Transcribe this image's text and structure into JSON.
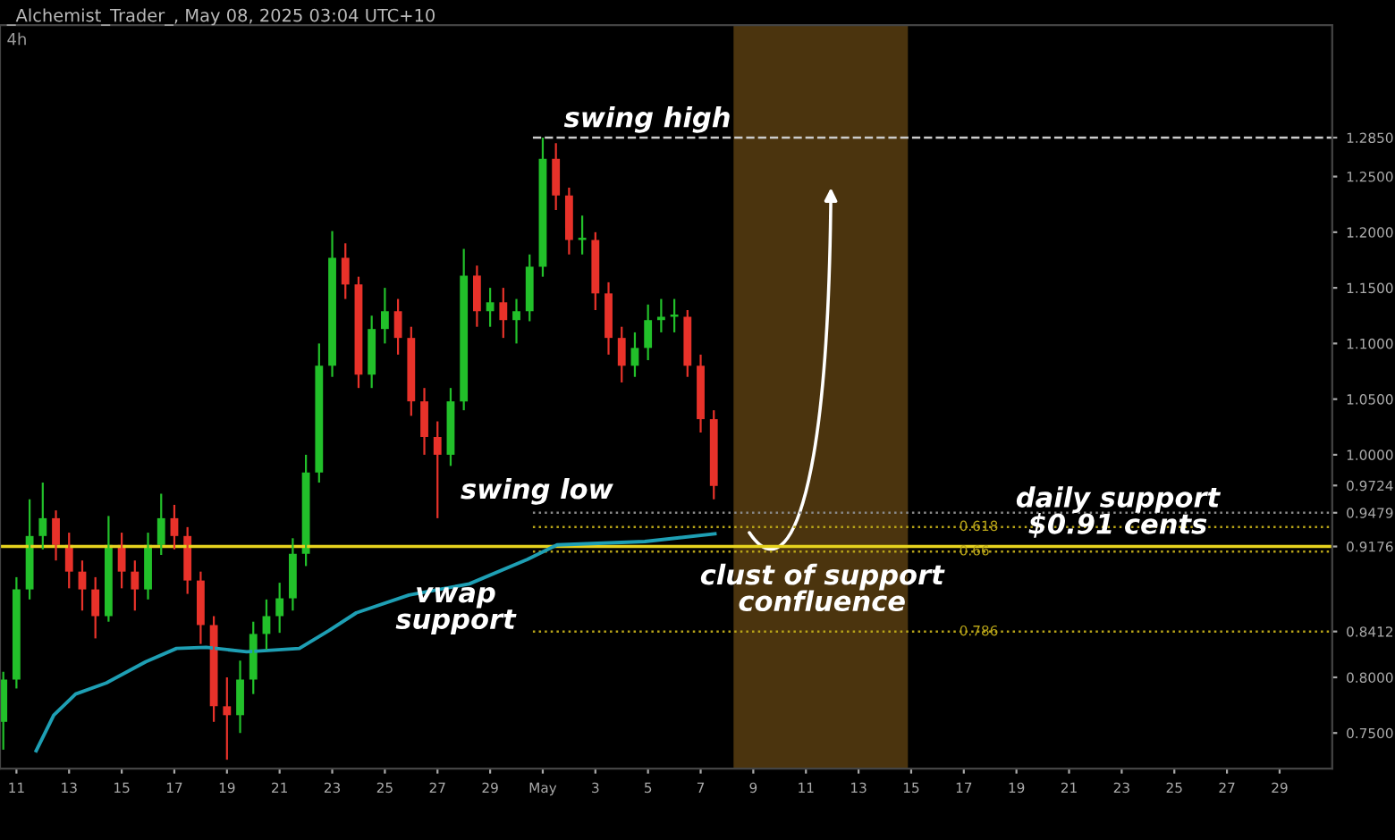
{
  "chart_data": {
    "type": "candlestick",
    "title": "_Alchemist_Trader_, May 08, 2025 03:04 UTC+10",
    "subtitle": "4h",
    "x": [
      "2025-04-10T12:00",
      "2025-04-11T00:00",
      "2025-04-11T12:00",
      "2025-04-12T00:00",
      "2025-04-12T12:00",
      "2025-04-13T00:00",
      "2025-04-13T12:00",
      "2025-04-14T00:00",
      "2025-04-14T12:00",
      "2025-04-15T00:00",
      "2025-04-15T12:00",
      "2025-04-16T00:00",
      "2025-04-16T12:00",
      "2025-04-17T00:00",
      "2025-04-17T12:00",
      "2025-04-18T00:00",
      "2025-04-18T12:00",
      "2025-04-19T00:00",
      "2025-04-19T12:00",
      "2025-04-20T00:00",
      "2025-04-20T12:00",
      "2025-04-21T00:00",
      "2025-04-21T12:00",
      "2025-04-22T00:00",
      "2025-04-22T12:00",
      "2025-04-23T00:00",
      "2025-04-23T12:00",
      "2025-04-24T00:00",
      "2025-04-24T12:00",
      "2025-04-25T00:00",
      "2025-04-25T12:00",
      "2025-04-26T00:00",
      "2025-04-26T12:00",
      "2025-04-27T00:00",
      "2025-04-27T12:00",
      "2025-04-28T00:00",
      "2025-04-28T12:00",
      "2025-04-29T00:00",
      "2025-04-29T12:00",
      "2025-04-30T00:00",
      "2025-04-30T12:00",
      "2025-05-01T00:00",
      "2025-05-01T12:00",
      "2025-05-02T00:00",
      "2025-05-02T12:00",
      "2025-05-03T00:00",
      "2025-05-03T12:00",
      "2025-05-04T00:00",
      "2025-05-04T12:00",
      "2025-05-05T00:00",
      "2025-05-05T12:00",
      "2025-05-06T00:00",
      "2025-05-06T12:00",
      "2025-05-07T00:00",
      "2025-05-07T12:00"
    ],
    "ohlc": [
      [
        0.76,
        0.805,
        0.735,
        0.798
      ],
      [
        0.798,
        0.89,
        0.79,
        0.879
      ],
      [
        0.879,
        0.96,
        0.87,
        0.927
      ],
      [
        0.927,
        0.975,
        0.915,
        0.943
      ],
      [
        0.943,
        0.95,
        0.905,
        0.919
      ],
      [
        0.919,
        0.93,
        0.88,
        0.895
      ],
      [
        0.895,
        0.905,
        0.86,
        0.879
      ],
      [
        0.879,
        0.89,
        0.835,
        0.855
      ],
      [
        0.855,
        0.945,
        0.85,
        0.919
      ],
      [
        0.919,
        0.93,
        0.88,
        0.895
      ],
      [
        0.895,
        0.905,
        0.86,
        0.879
      ],
      [
        0.879,
        0.93,
        0.87,
        0.919
      ],
      [
        0.919,
        0.965,
        0.91,
        0.943
      ],
      [
        0.943,
        0.955,
        0.915,
        0.927
      ],
      [
        0.927,
        0.935,
        0.875,
        0.887
      ],
      [
        0.887,
        0.895,
        0.83,
        0.847
      ],
      [
        0.847,
        0.855,
        0.76,
        0.774
      ],
      [
        0.774,
        0.8,
        0.726,
        0.766
      ],
      [
        0.766,
        0.815,
        0.75,
        0.798
      ],
      [
        0.798,
        0.85,
        0.785,
        0.839
      ],
      [
        0.839,
        0.87,
        0.825,
        0.855
      ],
      [
        0.855,
        0.885,
        0.84,
        0.871
      ],
      [
        0.871,
        0.925,
        0.86,
        0.911
      ],
      [
        0.911,
        1.0,
        0.9,
        0.984
      ],
      [
        0.984,
        1.1,
        0.975,
        1.08
      ],
      [
        1.08,
        1.201,
        1.07,
        1.177
      ],
      [
        1.177,
        1.19,
        1.14,
        1.153
      ],
      [
        1.153,
        1.16,
        1.06,
        1.072
      ],
      [
        1.072,
        1.125,
        1.06,
        1.113
      ],
      [
        1.113,
        1.15,
        1.1,
        1.129
      ],
      [
        1.129,
        1.14,
        1.09,
        1.105
      ],
      [
        1.105,
        1.115,
        1.035,
        1.048
      ],
      [
        1.048,
        1.06,
        1.0,
        1.016
      ],
      [
        1.016,
        1.03,
        0.943,
        1.0
      ],
      [
        1.0,
        1.06,
        0.99,
        1.048
      ],
      [
        1.048,
        1.185,
        1.04,
        1.161
      ],
      [
        1.161,
        1.17,
        1.115,
        1.129
      ],
      [
        1.129,
        1.15,
        1.115,
        1.137
      ],
      [
        1.137,
        1.15,
        1.105,
        1.121
      ],
      [
        1.121,
        1.14,
        1.1,
        1.129
      ],
      [
        1.129,
        1.18,
        1.12,
        1.169
      ],
      [
        1.169,
        1.285,
        1.16,
        1.266
      ],
      [
        1.266,
        1.28,
        1.22,
        1.233
      ],
      [
        1.233,
        1.24,
        1.18,
        1.193
      ],
      [
        1.193,
        1.215,
        1.18,
        1.193
      ],
      [
        1.193,
        1.2,
        1.13,
        1.145
      ],
      [
        1.145,
        1.155,
        1.09,
        1.105
      ],
      [
        1.105,
        1.115,
        1.065,
        1.08
      ],
      [
        1.08,
        1.11,
        1.07,
        1.096
      ],
      [
        1.096,
        1.135,
        1.085,
        1.121
      ],
      [
        1.121,
        1.14,
        1.11,
        1.124
      ],
      [
        1.124,
        1.14,
        1.11,
        1.124
      ],
      [
        1.124,
        1.13,
        1.07,
        1.08
      ],
      [
        1.08,
        1.09,
        1.02,
        1.032
      ],
      [
        1.032,
        1.04,
        0.96,
        0.972
      ]
    ],
    "colors": [
      "#22c02a",
      "#22c02a",
      "#22c02a",
      "#22c02a",
      "#e8322a",
      "#e8322a",
      "#e8322a",
      "#e8322a",
      "#22c02a",
      "#e8322a",
      "#e8322a",
      "#22c02a",
      "#22c02a",
      "#e8322a",
      "#e8322a",
      "#e8322a",
      "#e8322a",
      "#e8322a",
      "#22c02a",
      "#22c02a",
      "#22c02a",
      "#22c02a",
      "#22c02a",
      "#22c02a",
      "#22c02a",
      "#22c02a",
      "#e8322a",
      "#e8322a",
      "#22c02a",
      "#22c02a",
      "#e8322a",
      "#e8322a",
      "#e8322a",
      "#e8322a",
      "#22c02a",
      "#22c02a",
      "#e8322a",
      "#22c02a",
      "#e8322a",
      "#22c02a",
      "#22c02a",
      "#22c02a",
      "#e8322a",
      "#e8322a",
      "#22c02a",
      "#e8322a",
      "#e8322a",
      "#e8322a",
      "#22c02a",
      "#22c02a",
      "#22c02a",
      "#22c02a",
      "#e8322a",
      "#e8322a",
      "#e8322a"
    ],
    "series": [
      {
        "type": "line",
        "color": "#1e9fb4",
        "x": [
          "2025-04-11T18:00",
          "2025-04-12T10:00",
          "2025-04-13T06:00",
          "2025-04-14T10:00",
          "2025-04-15T22:00",
          "2025-04-17T02:00",
          "2025-04-18T05:00",
          "2025-04-19T18:00",
          "2025-04-21T18:00",
          "2025-04-22T21:00",
          "2025-04-23T22:00",
          "2025-04-25T22:00",
          "2025-04-28T05:00",
          "2025-04-30T10:00",
          "2025-05-01T13:00",
          "2025-05-04T21:00",
          "2025-05-07T13:00"
        ],
        "values": [
          0.734,
          0.766,
          0.785,
          0.795,
          0.814,
          0.826,
          0.827,
          0.823,
          0.826,
          0.842,
          0.858,
          0.874,
          0.884,
          0.906,
          0.919,
          0.922,
          0.929
        ]
      }
    ],
    "xlim": [
      "2025-04-10T09:00",
      "2025-05-31T00:00"
    ],
    "xticks": [
      {
        "value": "2025-04-11",
        "label": "11"
      },
      {
        "value": "2025-04-13",
        "label": "13"
      },
      {
        "value": "2025-04-15",
        "label": "15"
      },
      {
        "value": "2025-04-17",
        "label": "17"
      },
      {
        "value": "2025-04-19",
        "label": "19"
      },
      {
        "value": "2025-04-21",
        "label": "21"
      },
      {
        "value": "2025-04-23",
        "label": "23"
      },
      {
        "value": "2025-04-25",
        "label": "25"
      },
      {
        "value": "2025-04-27",
        "label": "27"
      },
      {
        "value": "2025-04-29",
        "label": "29"
      },
      {
        "value": "2025-05-01",
        "label": "May"
      },
      {
        "value": "2025-05-03",
        "label": "3"
      },
      {
        "value": "2025-05-05",
        "label": "5"
      },
      {
        "value": "2025-05-07",
        "label": "7"
      },
      {
        "value": "2025-05-09",
        "label": "9"
      },
      {
        "value": "2025-05-11",
        "label": "11"
      },
      {
        "value": "2025-05-13",
        "label": "13"
      },
      {
        "value": "2025-05-15",
        "label": "15"
      },
      {
        "value": "2025-05-17",
        "label": "17"
      },
      {
        "value": "2025-05-19",
        "label": "19"
      },
      {
        "value": "2025-05-21",
        "label": "21"
      },
      {
        "value": "2025-05-23",
        "label": "23"
      },
      {
        "value": "2025-05-25",
        "label": "25"
      },
      {
        "value": "2025-05-27",
        "label": "27"
      },
      {
        "value": "2025-05-29",
        "label": "29"
      }
    ],
    "ylim": [
      0.718,
      1.386
    ],
    "yticks": [
      {
        "value": 0.75,
        "label": "0.7500"
      },
      {
        "value": 0.8,
        "label": "0.8000"
      },
      {
        "value": 0.8412,
        "label": "0.8412"
      },
      {
        "value": 0.9176,
        "label": "0.9176"
      },
      {
        "value": 0.9479,
        "label": "0.9479"
      },
      {
        "value": 0.9724,
        "label": "0.9724"
      },
      {
        "value": 1.0,
        "label": "1.0000"
      },
      {
        "value": 1.05,
        "label": "1.0500"
      },
      {
        "value": 1.1,
        "label": "1.1000"
      },
      {
        "value": 1.15,
        "label": "1.1500"
      },
      {
        "value": 1.2,
        "label": "1.2000"
      },
      {
        "value": 1.25,
        "label": "1.2500"
      },
      {
        "value": 1.285,
        "label": "1.2850"
      }
    ],
    "ref_lines": [
      {
        "axis": "y",
        "value": 0.9176,
        "label": null,
        "color": "#e6d21e",
        "line_style": "solid"
      },
      {
        "axis": "y",
        "value": 1.285,
        "label": null,
        "color": "#cccccc",
        "line_style": "dashed"
      },
      {
        "axis": "y",
        "value": 0.9479,
        "label": null,
        "color": "#888888",
        "line_style": "dotted"
      },
      {
        "axis": "y",
        "value": 0.935,
        "label": null,
        "color": "#b8a418",
        "line_style": "dotted"
      },
      {
        "axis": "y",
        "value": 0.913,
        "label": null,
        "color": "#b8a418",
        "line_style": "dotted"
      },
      {
        "axis": "y",
        "value": 0.8412,
        "label": null,
        "color": "#b8a418",
        "line_style": "dotted"
      }
    ],
    "bands": [
      {
        "axis": "x",
        "from": "2025-05-08T06:00",
        "to": "2025-05-14T21:00",
        "label": null,
        "color": "#5e4112"
      }
    ],
    "annotations": [
      "swing high",
      "swing low",
      "daily support\n$0.91 cents",
      "clust of support\nconfluence",
      "vwap\nsupport",
      "0.618",
      "0.66",
      "0.786"
    ],
    "grid": false,
    "legend": false
  }
}
